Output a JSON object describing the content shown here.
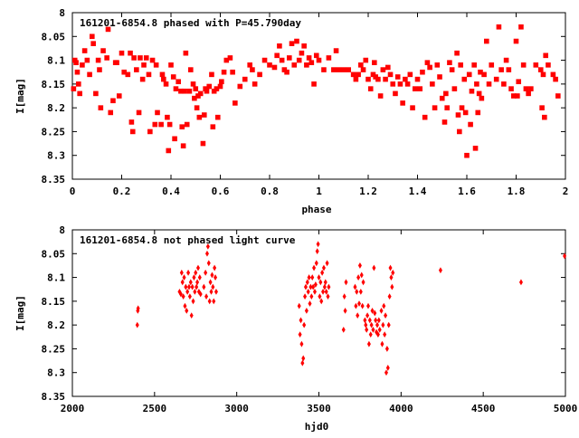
{
  "chart_data": [
    {
      "type": "scatter",
      "title": "161201-6854.8 phased with P=45.790day",
      "xlabel": "phase",
      "ylabel": "I[mag]",
      "xlim": [
        0,
        2
      ],
      "ylim": [
        8,
        8.35
      ],
      "y_inverted": true,
      "grid": false,
      "marker": "filled-square",
      "color": "#ff0000",
      "x_ticks": [
        "0",
        "0.2",
        "0.4",
        "0.6",
        "0.8",
        "1",
        "1.2",
        "1.4",
        "1.6",
        "1.8",
        "2"
      ],
      "y_ticks": [
        "8",
        "8.05",
        "8.1",
        "8.15",
        "8.2",
        "8.25",
        "8.3",
        "8.35"
      ],
      "points": [
        [
          0.005,
          8.16
        ],
        [
          0.01,
          8.1
        ],
        [
          0.015,
          8.105
        ],
        [
          0.02,
          8.125
        ],
        [
          0.025,
          8.15
        ],
        [
          0.03,
          8.17
        ],
        [
          0.04,
          8.11
        ],
        [
          0.05,
          8.08
        ],
        [
          0.06,
          8.1
        ],
        [
          0.07,
          8.13
        ],
        [
          0.08,
          8.05
        ],
        [
          0.085,
          8.065
        ],
        [
          0.095,
          8.17
        ],
        [
          0.105,
          8.1
        ],
        [
          0.11,
          8.12
        ],
        [
          0.115,
          8.2
        ],
        [
          0.125,
          8.08
        ],
        [
          0.14,
          8.095
        ],
        [
          0.145,
          8.035
        ],
        [
          0.155,
          8.21
        ],
        [
          0.165,
          8.185
        ],
        [
          0.175,
          8.105
        ],
        [
          0.18,
          8.105
        ],
        [
          0.19,
          8.175
        ],
        [
          0.2,
          8.085
        ],
        [
          0.21,
          8.125
        ],
        [
          0.225,
          8.13
        ],
        [
          0.235,
          8.085
        ],
        [
          0.24,
          8.23
        ],
        [
          0.245,
          8.25
        ],
        [
          0.25,
          8.095
        ],
        [
          0.26,
          8.12
        ],
        [
          0.27,
          8.21
        ],
        [
          0.275,
          8.095
        ],
        [
          0.285,
          8.14
        ],
        [
          0.29,
          8.11
        ],
        [
          0.3,
          8.095
        ],
        [
          0.31,
          8.13
        ],
        [
          0.315,
          8.25
        ],
        [
          0.325,
          8.1
        ],
        [
          0.335,
          8.235
        ],
        [
          0.34,
          8.11
        ],
        [
          0.345,
          8.21
        ],
        [
          0.36,
          8.235
        ],
        [
          0.365,
          8.13
        ],
        [
          0.37,
          8.14
        ],
        [
          0.38,
          8.15
        ],
        [
          0.385,
          8.22
        ],
        [
          0.39,
          8.29
        ],
        [
          0.395,
          8.235
        ],
        [
          0.4,
          8.11
        ],
        [
          0.41,
          8.135
        ],
        [
          0.415,
          8.265
        ],
        [
          0.42,
          8.16
        ],
        [
          0.43,
          8.145
        ],
        [
          0.44,
          8.165
        ],
        [
          0.445,
          8.24
        ],
        [
          0.45,
          8.28
        ],
        [
          0.455,
          8.165
        ],
        [
          0.46,
          8.085
        ],
        [
          0.465,
          8.235
        ],
        [
          0.475,
          8.165
        ],
        [
          0.48,
          8.12
        ],
        [
          0.49,
          8.15
        ],
        [
          0.495,
          8.18
        ],
        [
          0.5,
          8.16
        ],
        [
          0.505,
          8.2
        ],
        [
          0.51,
          8.175
        ],
        [
          0.515,
          8.22
        ],
        [
          0.52,
          8.17
        ],
        [
          0.53,
          8.275
        ],
        [
          0.535,
          8.215
        ],
        [
          0.54,
          8.16
        ],
        [
          0.545,
          8.165
        ],
        [
          0.555,
          8.155
        ],
        [
          0.565,
          8.13
        ],
        [
          0.57,
          8.24
        ],
        [
          0.575,
          8.165
        ],
        [
          0.585,
          8.16
        ],
        [
          0.59,
          8.22
        ],
        [
          0.6,
          8.155
        ],
        [
          0.605,
          8.145
        ],
        [
          0.615,
          8.125
        ],
        [
          0.625,
          8.1
        ],
        [
          0.64,
          8.095
        ],
        [
          0.65,
          8.125
        ],
        [
          0.66,
          8.19
        ],
        [
          0.68,
          8.155
        ],
        [
          0.7,
          8.14
        ],
        [
          0.72,
          8.11
        ],
        [
          0.73,
          8.12
        ],
        [
          0.74,
          8.15
        ],
        [
          0.76,
          8.13
        ],
        [
          0.78,
          8.1
        ],
        [
          0.8,
          8.11
        ],
        [
          0.82,
          8.115
        ],
        [
          0.83,
          8.09
        ],
        [
          0.84,
          8.07
        ],
        [
          0.85,
          8.1
        ],
        [
          0.86,
          8.12
        ],
        [
          0.87,
          8.125
        ],
        [
          0.88,
          8.095
        ],
        [
          0.89,
          8.065
        ],
        [
          0.9,
          8.11
        ],
        [
          0.91,
          8.06
        ],
        [
          0.92,
          8.1
        ],
        [
          0.93,
          8.085
        ],
        [
          0.94,
          8.07
        ],
        [
          0.95,
          8.11
        ],
        [
          0.96,
          8.095
        ],
        [
          0.97,
          8.105
        ],
        [
          0.98,
          8.15
        ],
        [
          0.99,
          8.09
        ],
        [
          1.0,
          8.1
        ],
        [
          1.02,
          8.12
        ],
        [
          1.04,
          8.095
        ],
        [
          1.06,
          8.12
        ],
        [
          1.07,
          8.08
        ],
        [
          1.08,
          8.12
        ],
        [
          1.1,
          8.12
        ],
        [
          1.12,
          8.12
        ],
        [
          1.14,
          8.13
        ],
        [
          1.15,
          8.14
        ],
        [
          1.16,
          8.13
        ],
        [
          1.17,
          8.11
        ],
        [
          1.18,
          8.12
        ],
        [
          1.19,
          8.1
        ],
        [
          1.2,
          8.14
        ],
        [
          1.21,
          8.16
        ],
        [
          1.22,
          8.13
        ],
        [
          1.225,
          8.105
        ],
        [
          1.23,
          8.135
        ],
        [
          1.24,
          8.14
        ],
        [
          1.25,
          8.175
        ],
        [
          1.26,
          8.12
        ],
        [
          1.27,
          8.14
        ],
        [
          1.28,
          8.115
        ],
        [
          1.29,
          8.13
        ],
        [
          1.3,
          8.15
        ],
        [
          1.31,
          8.17
        ],
        [
          1.32,
          8.135
        ],
        [
          1.33,
          8.15
        ],
        [
          1.34,
          8.19
        ],
        [
          1.35,
          8.14
        ],
        [
          1.36,
          8.15
        ],
        [
          1.37,
          8.13
        ],
        [
          1.38,
          8.2
        ],
        [
          1.39,
          8.16
        ],
        [
          1.4,
          8.14
        ],
        [
          1.41,
          8.16
        ],
        [
          1.42,
          8.125
        ],
        [
          1.43,
          8.22
        ],
        [
          1.44,
          8.105
        ],
        [
          1.45,
          8.115
        ],
        [
          1.46,
          8.15
        ],
        [
          1.47,
          8.2
        ],
        [
          1.48,
          8.11
        ],
        [
          1.49,
          8.135
        ],
        [
          1.5,
          8.18
        ],
        [
          1.51,
          8.23
        ],
        [
          1.515,
          8.17
        ],
        [
          1.52,
          8.2
        ],
        [
          1.53,
          8.105
        ],
        [
          1.54,
          8.12
        ],
        [
          1.55,
          8.16
        ],
        [
          1.56,
          8.085
        ],
        [
          1.565,
          8.215
        ],
        [
          1.57,
          8.25
        ],
        [
          1.575,
          8.11
        ],
        [
          1.58,
          8.2
        ],
        [
          1.59,
          8.14
        ],
        [
          1.595,
          8.21
        ],
        [
          1.6,
          8.3
        ],
        [
          1.61,
          8.13
        ],
        [
          1.615,
          8.235
        ],
        [
          1.62,
          8.165
        ],
        [
          1.63,
          8.11
        ],
        [
          1.635,
          8.285
        ],
        [
          1.64,
          8.15
        ],
        [
          1.645,
          8.21
        ],
        [
          1.65,
          8.17
        ],
        [
          1.655,
          8.125
        ],
        [
          1.66,
          8.18
        ],
        [
          1.67,
          8.13
        ],
        [
          1.68,
          8.06
        ],
        [
          1.69,
          8.15
        ],
        [
          1.7,
          8.11
        ],
        [
          1.72,
          8.14
        ],
        [
          1.73,
          8.03
        ],
        [
          1.74,
          8.12
        ],
        [
          1.75,
          8.15
        ],
        [
          1.76,
          8.1
        ],
        [
          1.77,
          8.12
        ],
        [
          1.78,
          8.16
        ],
        [
          1.79,
          8.175
        ],
        [
          1.8,
          8.06
        ],
        [
          1.805,
          8.175
        ],
        [
          1.81,
          8.145
        ],
        [
          1.82,
          8.03
        ],
        [
          1.83,
          8.11
        ],
        [
          1.84,
          8.16
        ],
        [
          1.85,
          8.17
        ],
        [
          1.86,
          8.16
        ],
        [
          1.88,
          8.11
        ],
        [
          1.9,
          8.12
        ],
        [
          1.905,
          8.2
        ],
        [
          1.91,
          8.13
        ],
        [
          1.915,
          8.22
        ],
        [
          1.92,
          8.09
        ],
        [
          1.93,
          8.11
        ],
        [
          1.95,
          8.13
        ],
        [
          1.96,
          8.14
        ],
        [
          1.97,
          8.175
        ]
      ]
    },
    {
      "type": "scatter",
      "title": "161201-6854.8 not phased light curve",
      "xlabel": "hjd0",
      "ylabel": "I[mag]",
      "xlim": [
        2000,
        5000
      ],
      "ylim": [
        8,
        8.35
      ],
      "y_inverted": true,
      "grid": false,
      "marker": "filled-diamond",
      "color": "#ff0000",
      "x_ticks": [
        "2000",
        "2500",
        "3000",
        "3500",
        "4000",
        "4500",
        "5000"
      ],
      "y_ticks": [
        "8",
        "8.05",
        "8.1",
        "8.15",
        "8.2",
        "8.25",
        "8.3",
        "8.35"
      ],
      "points": [
        [
          2395,
          8.2
        ],
        [
          2398,
          8.17
        ],
        [
          2400,
          8.165
        ],
        [
          2652,
          8.13
        ],
        [
          2660,
          8.135
        ],
        [
          2665,
          8.09
        ],
        [
          2670,
          8.11
        ],
        [
          2675,
          8.14
        ],
        [
          2680,
          8.1
        ],
        [
          2685,
          8.16
        ],
        [
          2690,
          8.12
        ],
        [
          2695,
          8.17
        ],
        [
          2700,
          8.13
        ],
        [
          2705,
          8.09
        ],
        [
          2710,
          8.12
        ],
        [
          2715,
          8.14
        ],
        [
          2720,
          8.11
        ],
        [
          2725,
          8.18
        ],
        [
          2730,
          8.12
        ],
        [
          2735,
          8.15
        ],
        [
          2740,
          8.1
        ],
        [
          2745,
          8.13
        ],
        [
          2750,
          8.09
        ],
        [
          2755,
          8.12
        ],
        [
          2760,
          8.11
        ],
        [
          2765,
          8.08
        ],
        [
          2770,
          8.13
        ],
        [
          2775,
          8.1
        ],
        [
          2780,
          8.135
        ],
        [
          2800,
          8.12
        ],
        [
          2810,
          8.09
        ],
        [
          2815,
          8.14
        ],
        [
          2820,
          8.05
        ],
        [
          2825,
          8.035
        ],
        [
          2830,
          8.07
        ],
        [
          2835,
          8.15
        ],
        [
          2840,
          8.11
        ],
        [
          2845,
          8.13
        ],
        [
          2850,
          8.095
        ],
        [
          2855,
          8.12
        ],
        [
          2860,
          8.15
        ],
        [
          2865,
          8.08
        ],
        [
          2870,
          8.1
        ],
        [
          2875,
          8.13
        ],
        [
          3380,
          8.16
        ],
        [
          3385,
          8.22
        ],
        [
          3390,
          8.19
        ],
        [
          3395,
          8.24
        ],
        [
          3400,
          8.28
        ],
        [
          3405,
          8.27
        ],
        [
          3410,
          8.2
        ],
        [
          3415,
          8.14
        ],
        [
          3420,
          8.12
        ],
        [
          3425,
          8.17
        ],
        [
          3430,
          8.11
        ],
        [
          3435,
          8.13
        ],
        [
          3440,
          8.1
        ],
        [
          3445,
          8.155
        ],
        [
          3450,
          8.12
        ],
        [
          3455,
          8.14
        ],
        [
          3460,
          8.1
        ],
        [
          3465,
          8.12
        ],
        [
          3470,
          8.08
        ],
        [
          3475,
          8.13
        ],
        [
          3480,
          8.115
        ],
        [
          3485,
          8.07
        ],
        [
          3490,
          8.045
        ],
        [
          3495,
          8.03
        ],
        [
          3500,
          8.1
        ],
        [
          3505,
          8.14
        ],
        [
          3510,
          8.11
        ],
        [
          3515,
          8.15
        ],
        [
          3520,
          8.09
        ],
        [
          3525,
          8.13
        ],
        [
          3530,
          8.08
        ],
        [
          3535,
          8.12
        ],
        [
          3540,
          8.11
        ],
        [
          3545,
          8.13
        ],
        [
          3550,
          8.07
        ],
        [
          3555,
          8.14
        ],
        [
          3560,
          8.12
        ],
        [
          3650,
          8.21
        ],
        [
          3655,
          8.14
        ],
        [
          3660,
          8.17
        ],
        [
          3665,
          8.11
        ],
        [
          3720,
          8.12
        ],
        [
          3725,
          8.16
        ],
        [
          3730,
          8.13
        ],
        [
          3735,
          8.18
        ],
        [
          3740,
          8.1
        ],
        [
          3745,
          8.155
        ],
        [
          3750,
          8.075
        ],
        [
          3755,
          8.13
        ],
        [
          3760,
          8.095
        ],
        [
          3765,
          8.16
        ],
        [
          3770,
          8.11
        ],
        [
          3780,
          8.19
        ],
        [
          3785,
          8.2
        ],
        [
          3790,
          8.21
        ],
        [
          3795,
          8.18
        ],
        [
          3800,
          8.16
        ],
        [
          3805,
          8.24
        ],
        [
          3810,
          8.19
        ],
        [
          3815,
          8.22
        ],
        [
          3820,
          8.2
        ],
        [
          3825,
          8.17
        ],
        [
          3830,
          8.21
        ],
        [
          3835,
          8.08
        ],
        [
          3840,
          8.175
        ],
        [
          3845,
          8.19
        ],
        [
          3850,
          8.215
        ],
        [
          3855,
          8.2
        ],
        [
          3860,
          8.22
        ],
        [
          3865,
          8.19
        ],
        [
          3870,
          8.21
        ],
        [
          3880,
          8.17
        ],
        [
          3885,
          8.24
        ],
        [
          3890,
          8.2
        ],
        [
          3895,
          8.16
        ],
        [
          3900,
          8.22
        ],
        [
          3905,
          8.18
        ],
        [
          3910,
          8.3
        ],
        [
          3915,
          8.25
        ],
        [
          3920,
          8.29
        ],
        [
          3925,
          8.2
        ],
        [
          3930,
          8.14
        ],
        [
          3935,
          8.08
        ],
        [
          3940,
          8.1
        ],
        [
          3945,
          8.12
        ],
        [
          3950,
          8.09
        ],
        [
          4240,
          8.085
        ],
        [
          4730,
          8.11
        ],
        [
          4995,
          8.055
        ]
      ]
    }
  ]
}
